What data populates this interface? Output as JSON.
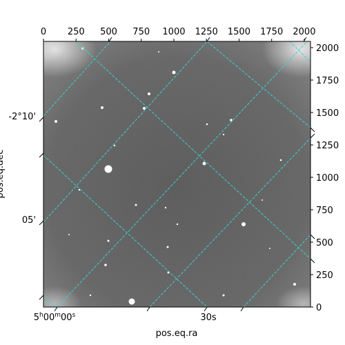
{
  "image": {
    "description_free": true,
    "pixel_axes": {
      "x_ticks": [
        "0",
        "250",
        "500",
        "750",
        "1000",
        "1250",
        "1500",
        "1750",
        "2000"
      ],
      "y_ticks": [
        "0",
        "250",
        "500",
        "750",
        "1000",
        "1250",
        "1500",
        "1750",
        "2000"
      ],
      "x_range": [
        0,
        2048
      ],
      "y_range": [
        0,
        2048
      ]
    },
    "world_axes": {
      "ra_label": "pos.eq.ra",
      "dec_label": "pos.eq.dec",
      "ra_tick_0": "5h00m00s",
      "ra_tick_1": "30s",
      "dec_tick_0": "-2°10'",
      "dec_tick_1": "05'"
    },
    "colors": {
      "grid": "#3fd0d0",
      "frame": "#000000"
    }
  }
}
